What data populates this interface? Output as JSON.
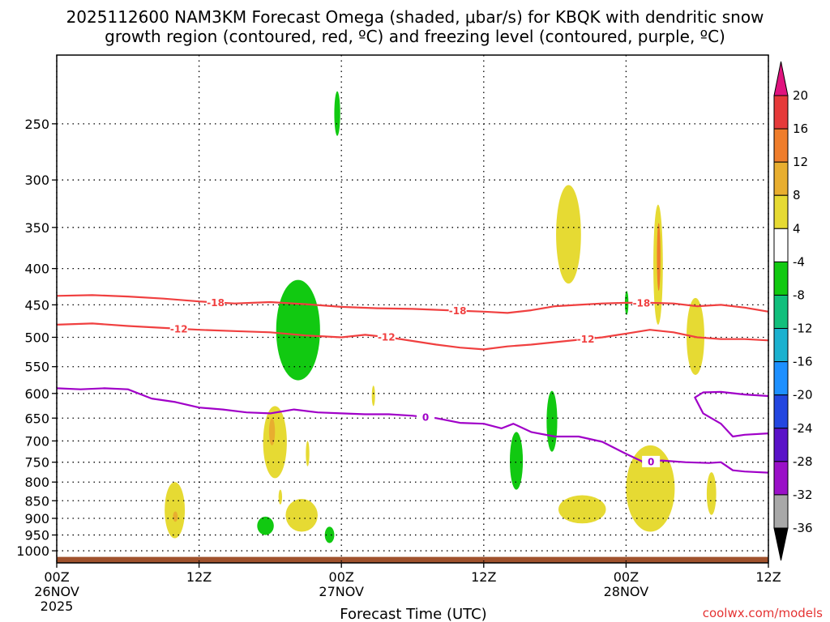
{
  "chart_data": {
    "type": "heatmap",
    "title_line1": "2025112600 NAM3KM Forecast Omega (shaded, μbar/s) for KBQK with dendritic snow",
    "title_line2": "growth region (contoured, red, ºC) and freezing level (contoured, purple, ºC)",
    "xlabel": "Forecast Time (UTC)",
    "credit": "coolwx.com/models",
    "x_range_hours": [
      0,
      60
    ],
    "x_ticks": [
      {
        "hour": 0,
        "lines": [
          "00Z",
          "26NOV",
          "2025"
        ]
      },
      {
        "hour": 12,
        "lines": [
          "12Z"
        ]
      },
      {
        "hour": 24,
        "lines": [
          "00Z",
          "27NOV"
        ]
      },
      {
        "hour": 36,
        "lines": [
          "12Z"
        ]
      },
      {
        "hour": 48,
        "lines": [
          "00Z",
          "28NOV"
        ]
      },
      {
        "hour": 60,
        "lines": [
          "12Z"
        ]
      }
    ],
    "y_axis": {
      "scale": "log-pressure",
      "ylim_hPa": [
        1040,
        200
      ],
      "reversed": true,
      "ticks": [
        250,
        300,
        350,
        400,
        450,
        500,
        550,
        600,
        650,
        700,
        750,
        800,
        850,
        900,
        950,
        1000
      ]
    },
    "grid": true,
    "colorbar": {
      "ticks": [
        "20",
        "16",
        "12",
        "8",
        "4",
        "-4",
        "-8",
        "-12",
        "-16",
        "-20",
        "-24",
        "-28",
        "-32",
        "-36"
      ],
      "levels": [
        {
          "from": 16,
          "to": 20,
          "color": "#e63a3a"
        },
        {
          "from": 12,
          "to": 16,
          "color": "#ef7d2b"
        },
        {
          "from": 8,
          "to": 12,
          "color": "#e8ae2f"
        },
        {
          "from": 4,
          "to": 8,
          "color": "#e6da33"
        },
        {
          "from": -4,
          "to": 4,
          "color": "#ffffff"
        },
        {
          "from": -8,
          "to": -4,
          "color": "#11c911"
        },
        {
          "from": -12,
          "to": -8,
          "color": "#11bf7c"
        },
        {
          "from": -16,
          "to": -12,
          "color": "#1bb1cf"
        },
        {
          "from": -20,
          "to": -16,
          "color": "#1e90ff"
        },
        {
          "from": -24,
          "to": -20,
          "color": "#2346e0"
        },
        {
          "from": -28,
          "to": -24,
          "color": "#5a12c8"
        },
        {
          "from": -32,
          "to": -28,
          "color": "#9a10c8"
        },
        {
          "from": -36,
          "to": -32,
          "color": "#a8a8a8"
        }
      ],
      "above_color": "#e0137e",
      "below_color": "#000000"
    },
    "ground_color": "#a0522d",
    "shaded_regions": [
      {
        "level": -6,
        "color": "#11c911",
        "t": [
          23.4,
          23.9
        ],
        "p": [
          225,
          260
        ]
      },
      {
        "level": -6,
        "color": "#11c911",
        "t": [
          18.5,
          22.2
        ],
        "p": [
          415,
          575
        ]
      },
      {
        "level": -6,
        "color": "#11c911",
        "t": [
          16.9,
          18.3
        ],
        "p": [
          895,
          950
        ]
      },
      {
        "level": -6,
        "color": "#11c911",
        "t": [
          22.6,
          23.4
        ],
        "p": [
          925,
          975
        ]
      },
      {
        "level": -6,
        "color": "#11c911",
        "t": [
          38.2,
          39.3
        ],
        "p": [
          680,
          820
        ]
      },
      {
        "level": -6,
        "color": "#11c911",
        "t": [
          41.3,
          42.2
        ],
        "p": [
          595,
          725
        ]
      },
      {
        "level": -6,
        "color": "#11c911",
        "t": [
          47.9,
          48.2
        ],
        "p": [
          430,
          465
        ]
      },
      {
        "level": 6,
        "color": "#e6da33",
        "t": [
          42.1,
          44.2
        ],
        "p": [
          305,
          420
        ]
      },
      {
        "level": 6,
        "color": "#e6da33",
        "t": [
          50.3,
          51.1
        ],
        "p": [
          325,
          480
        ]
      },
      {
        "level": 14,
        "color": "#ef7d2b",
        "t": [
          50.6,
          50.9
        ],
        "p": [
          345,
          430
        ]
      },
      {
        "level": 6,
        "color": "#e6da33",
        "t": [
          53.1,
          54.6
        ],
        "p": [
          440,
          565
        ]
      },
      {
        "level": 6,
        "color": "#e6da33",
        "t": [
          26.6,
          26.8
        ],
        "p": [
          585,
          625
        ]
      },
      {
        "level": 6,
        "color": "#e6da33",
        "t": [
          17.4,
          19.4
        ],
        "p": [
          625,
          790
        ]
      },
      {
        "level": 10,
        "color": "#e8ae2f",
        "t": [
          17.9,
          18.4
        ],
        "p": [
          650,
          710
        ]
      },
      {
        "level": 6,
        "color": "#e6da33",
        "t": [
          21.0,
          21.3
        ],
        "p": [
          700,
          760
        ]
      },
      {
        "level": 6,
        "color": "#e6da33",
        "t": [
          18.7,
          19.0
        ],
        "p": [
          820,
          860
        ]
      },
      {
        "level": 6,
        "color": "#e6da33",
        "t": [
          9.1,
          10.8
        ],
        "p": [
          800,
          960
        ]
      },
      {
        "level": 10,
        "color": "#e8ae2f",
        "t": [
          9.8,
          10.2
        ],
        "p": [
          880,
          910
        ]
      },
      {
        "level": 6,
        "color": "#e6da33",
        "t": [
          19.3,
          22.0
        ],
        "p": [
          845,
          940
        ]
      },
      {
        "level": 6,
        "color": "#e6da33",
        "t": [
          42.3,
          46.3
        ],
        "p": [
          835,
          915
        ]
      },
      {
        "level": 6,
        "color": "#e6da33",
        "t": [
          48.0,
          52.1
        ],
        "p": [
          710,
          940
        ]
      },
      {
        "level": 6,
        "color": "#e6da33",
        "t": [
          54.8,
          55.6
        ],
        "p": [
          775,
          890
        ]
      }
    ],
    "contours": [
      {
        "label": "-18",
        "color": "#f04040",
        "points": [
          [
            0,
            437
          ],
          [
            3,
            436
          ],
          [
            6,
            438
          ],
          [
            9,
            441
          ],
          [
            12,
            445
          ],
          [
            15,
            448
          ],
          [
            18,
            446
          ],
          [
            21,
            449
          ],
          [
            24,
            453
          ],
          [
            27,
            455
          ],
          [
            30,
            456
          ],
          [
            33,
            458
          ],
          [
            36,
            460
          ],
          [
            38,
            462
          ],
          [
            40,
            458
          ],
          [
            42,
            452
          ],
          [
            44,
            450
          ],
          [
            46,
            448
          ],
          [
            48,
            447
          ],
          [
            50,
            447
          ],
          [
            52,
            448
          ],
          [
            54,
            452
          ],
          [
            56,
            450
          ],
          [
            58,
            454
          ],
          [
            60,
            460
          ]
        ],
        "labels_at": [
          13.4,
          33.8,
          49.3
        ]
      },
      {
        "label": "-12",
        "color": "#f04040",
        "points": [
          [
            0,
            480
          ],
          [
            3,
            478
          ],
          [
            6,
            482
          ],
          [
            9,
            485
          ],
          [
            12,
            488
          ],
          [
            15,
            490
          ],
          [
            18,
            492
          ],
          [
            21,
            497
          ],
          [
            24,
            500
          ],
          [
            26,
            496
          ],
          [
            28,
            500
          ],
          [
            30,
            506
          ],
          [
            32,
            512
          ],
          [
            34,
            517
          ],
          [
            36,
            520
          ],
          [
            38,
            515
          ],
          [
            40,
            512
          ],
          [
            42,
            508
          ],
          [
            44,
            504
          ],
          [
            46,
            500
          ],
          [
            48,
            494
          ],
          [
            50,
            488
          ],
          [
            52,
            492
          ],
          [
            54,
            500
          ],
          [
            56,
            503
          ],
          [
            58,
            503
          ],
          [
            60,
            505
          ]
        ],
        "labels_at": [
          10.3,
          27.8,
          44.6
        ]
      },
      {
        "label": "0",
        "color": "#a000c8",
        "points": [
          [
            0,
            590
          ],
          [
            2,
            592
          ],
          [
            4,
            590
          ],
          [
            6,
            592
          ],
          [
            8,
            610
          ],
          [
            10,
            617
          ],
          [
            12,
            628
          ],
          [
            14,
            632
          ],
          [
            16,
            638
          ],
          [
            18,
            640
          ],
          [
            20,
            632
          ],
          [
            22,
            638
          ],
          [
            24,
            640
          ],
          [
            26,
            642
          ],
          [
            28,
            642
          ],
          [
            30,
            645
          ],
          [
            32,
            650
          ],
          [
            34,
            660
          ],
          [
            36,
            662
          ],
          [
            37.5,
            672
          ],
          [
            38.5,
            662
          ],
          [
            40,
            680
          ],
          [
            42,
            690
          ],
          [
            44,
            690
          ],
          [
            46,
            702
          ],
          [
            48,
            730
          ],
          [
            49.5,
            750
          ],
          [
            51,
            746
          ],
          [
            53,
            750
          ],
          [
            55,
            752
          ],
          [
            56,
            750
          ],
          [
            57,
            770
          ],
          [
            58,
            773
          ],
          [
            60,
            776
          ]
        ],
        "labels_at": [
          31.1,
          50.1
        ]
      },
      {
        "label": "",
        "color": "#a000c8",
        "points": [
          [
            60,
            605
          ],
          [
            58,
            602
          ],
          [
            56,
            597
          ],
          [
            54.5,
            598
          ],
          [
            53.8,
            608
          ],
          [
            54.5,
            640
          ],
          [
            56,
            662
          ],
          [
            57,
            690
          ],
          [
            58,
            686
          ],
          [
            60,
            683
          ]
        ],
        "labels_at": []
      }
    ]
  }
}
